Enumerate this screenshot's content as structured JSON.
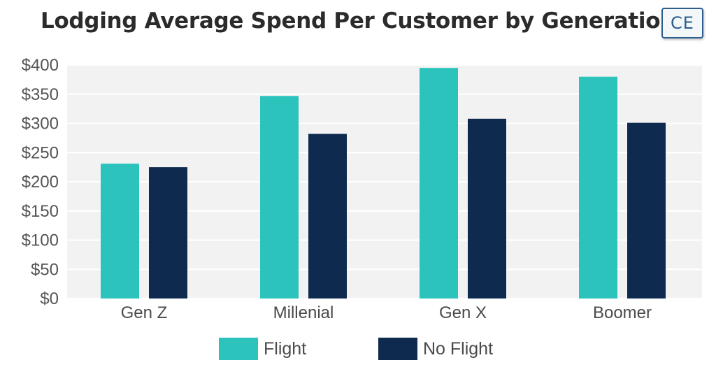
{
  "header": {
    "title": "Lodging Average Spend Per Customer by Generation",
    "logo_text": "CE"
  },
  "colors": {
    "flight": "#2cc3bd",
    "no_flight": "#0e2a4e",
    "plot_background": "#f2f2f2",
    "gridline": "#ffffff"
  },
  "chart_data": {
    "type": "bar",
    "title": "Lodging Average Spend Per Customer by Generation",
    "xlabel": "",
    "ylabel": "",
    "categories": [
      "Gen Z",
      "Millenial",
      "Gen X",
      "Boomer"
    ],
    "series": [
      {
        "name": "Flight",
        "values": [
          231,
          347,
          395,
          380
        ]
      },
      {
        "name": "No Flight",
        "values": [
          225,
          282,
          308,
          301
        ]
      }
    ],
    "ylim": [
      0,
      400
    ],
    "yticks": [
      0,
      50,
      100,
      150,
      200,
      250,
      300,
      350,
      400
    ],
    "ytick_labels": [
      "$0",
      "$50",
      "$100",
      "$150",
      "$200",
      "$250",
      "$300",
      "$350",
      "$400"
    ],
    "grid": true,
    "legend_position": "bottom"
  }
}
